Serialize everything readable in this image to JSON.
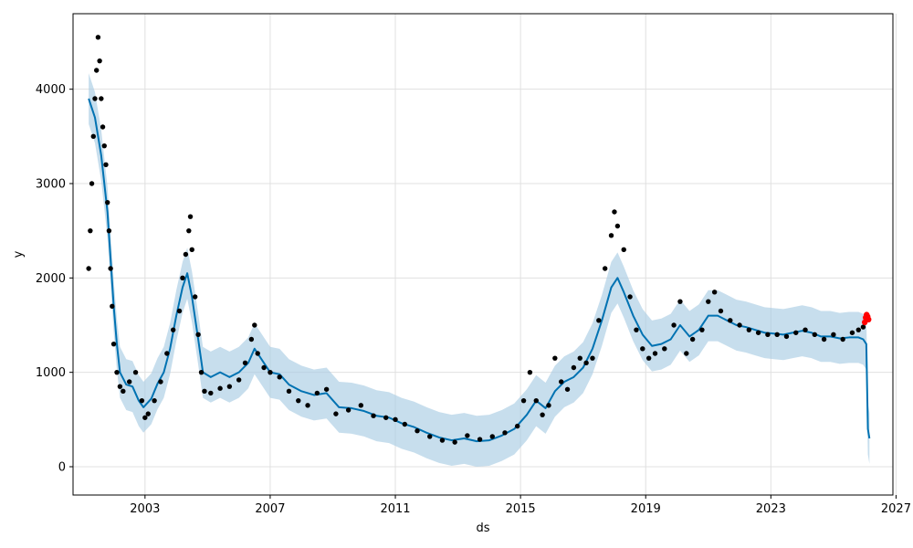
{
  "chart_data": {
    "type": "line",
    "title": "",
    "xlabel": "ds",
    "ylabel": "y",
    "xlim": [
      2000.7,
      2026.9
    ],
    "ylim": [
      -300,
      4800
    ],
    "x_ticks": [
      2003,
      2007,
      2011,
      2015,
      2019,
      2023,
      2027
    ],
    "y_ticks": [
      0,
      1000,
      2000,
      3000,
      4000
    ],
    "grid": true,
    "legend": "none",
    "colors": {
      "observed": "#000000",
      "forecast": "#0072B2",
      "interval": "#a9cce3",
      "highlight": "#ff0000"
    },
    "series": [
      {
        "kind": "observed-points",
        "points": [
          [
            2001.2,
            2100
          ],
          [
            2001.25,
            2500
          ],
          [
            2001.3,
            3000
          ],
          [
            2001.35,
            3500
          ],
          [
            2001.4,
            3900
          ],
          [
            2001.45,
            4200
          ],
          [
            2001.5,
            4550
          ],
          [
            2001.55,
            4300
          ],
          [
            2001.6,
            3900
          ],
          [
            2001.65,
            3600
          ],
          [
            2001.7,
            3400
          ],
          [
            2001.75,
            3200
          ],
          [
            2001.8,
            2800
          ],
          [
            2001.85,
            2500
          ],
          [
            2001.9,
            2100
          ],
          [
            2001.95,
            1700
          ],
          [
            2002.0,
            1300
          ],
          [
            2002.1,
            1000
          ],
          [
            2002.2,
            850
          ],
          [
            2002.3,
            800
          ],
          [
            2002.5,
            900
          ],
          [
            2002.7,
            1000
          ],
          [
            2002.9,
            700
          ],
          [
            2003.0,
            520
          ],
          [
            2003.1,
            560
          ],
          [
            2003.3,
            700
          ],
          [
            2003.5,
            900
          ],
          [
            2003.7,
            1200
          ],
          [
            2003.9,
            1450
          ],
          [
            2004.1,
            1650
          ],
          [
            2004.2,
            2000
          ],
          [
            2004.3,
            2250
          ],
          [
            2004.4,
            2500
          ],
          [
            2004.45,
            2650
          ],
          [
            2004.5,
            2300
          ],
          [
            2004.6,
            1800
          ],
          [
            2004.7,
            1400
          ],
          [
            2004.8,
            1000
          ],
          [
            2004.9,
            800
          ],
          [
            2005.1,
            780
          ],
          [
            2005.4,
            830
          ],
          [
            2005.7,
            850
          ],
          [
            2006.0,
            920
          ],
          [
            2006.2,
            1100
          ],
          [
            2006.4,
            1350
          ],
          [
            2006.5,
            1500
          ],
          [
            2006.6,
            1200
          ],
          [
            2006.8,
            1050
          ],
          [
            2007.0,
            1000
          ],
          [
            2007.3,
            950
          ],
          [
            2007.6,
            800
          ],
          [
            2007.9,
            700
          ],
          [
            2008.2,
            650
          ],
          [
            2008.5,
            780
          ],
          [
            2008.8,
            820
          ],
          [
            2009.1,
            560
          ],
          [
            2009.5,
            600
          ],
          [
            2009.9,
            650
          ],
          [
            2010.3,
            540
          ],
          [
            2010.7,
            520
          ],
          [
            2011.0,
            500
          ],
          [
            2011.3,
            450
          ],
          [
            2011.7,
            380
          ],
          [
            2012.1,
            320
          ],
          [
            2012.5,
            280
          ],
          [
            2012.9,
            260
          ],
          [
            2013.3,
            330
          ],
          [
            2013.7,
            290
          ],
          [
            2014.1,
            320
          ],
          [
            2014.5,
            360
          ],
          [
            2014.9,
            430
          ],
          [
            2015.1,
            700
          ],
          [
            2015.3,
            1000
          ],
          [
            2015.5,
            700
          ],
          [
            2015.7,
            550
          ],
          [
            2015.9,
            650
          ],
          [
            2016.1,
            1150
          ],
          [
            2016.3,
            900
          ],
          [
            2016.5,
            820
          ],
          [
            2016.7,
            1050
          ],
          [
            2016.9,
            1150
          ],
          [
            2017.1,
            1100
          ],
          [
            2017.3,
            1150
          ],
          [
            2017.5,
            1550
          ],
          [
            2017.7,
            2100
          ],
          [
            2017.9,
            2450
          ],
          [
            2018.0,
            2700
          ],
          [
            2018.1,
            2550
          ],
          [
            2018.3,
            2300
          ],
          [
            2018.5,
            1800
          ],
          [
            2018.7,
            1450
          ],
          [
            2018.9,
            1250
          ],
          [
            2019.1,
            1150
          ],
          [
            2019.3,
            1200
          ],
          [
            2019.6,
            1250
          ],
          [
            2019.9,
            1500
          ],
          [
            2020.1,
            1750
          ],
          [
            2020.3,
            1200
          ],
          [
            2020.5,
            1350
          ],
          [
            2020.8,
            1450
          ],
          [
            2021.0,
            1750
          ],
          [
            2021.2,
            1850
          ],
          [
            2021.4,
            1650
          ],
          [
            2021.7,
            1550
          ],
          [
            2022.0,
            1500
          ],
          [
            2022.3,
            1450
          ],
          [
            2022.6,
            1420
          ],
          [
            2022.9,
            1400
          ],
          [
            2023.2,
            1400
          ],
          [
            2023.5,
            1380
          ],
          [
            2023.8,
            1420
          ],
          [
            2024.1,
            1450
          ],
          [
            2024.4,
            1400
          ],
          [
            2024.7,
            1350
          ],
          [
            2025.0,
            1400
          ],
          [
            2025.3,
            1350
          ],
          [
            2025.6,
            1420
          ],
          [
            2025.8,
            1450
          ],
          [
            2025.95,
            1480
          ]
        ]
      },
      {
        "kind": "highlighted-points",
        "points": [
          [
            2026.0,
            1530
          ],
          [
            2026.03,
            1580
          ],
          [
            2026.06,
            1610
          ],
          [
            2026.09,
            1590
          ],
          [
            2026.12,
            1560
          ]
        ]
      },
      {
        "kind": "forecast-line",
        "points": [
          [
            2001.2,
            3900
          ],
          [
            2001.4,
            3700
          ],
          [
            2001.6,
            3300
          ],
          [
            2001.8,
            2700
          ],
          [
            2002.0,
            1700
          ],
          [
            2002.1,
            1300
          ],
          [
            2002.2,
            1000
          ],
          [
            2002.4,
            870
          ],
          [
            2002.6,
            850
          ],
          [
            2002.8,
            700
          ],
          [
            2002.95,
            630
          ],
          [
            2003.2,
            720
          ],
          [
            2003.4,
            880
          ],
          [
            2003.6,
            1000
          ],
          [
            2003.8,
            1250
          ],
          [
            2004.0,
            1600
          ],
          [
            2004.2,
            1900
          ],
          [
            2004.35,
            2050
          ],
          [
            2004.5,
            1800
          ],
          [
            2004.7,
            1350
          ],
          [
            2004.85,
            1000
          ],
          [
            2005.1,
            950
          ],
          [
            2005.4,
            1000
          ],
          [
            2005.7,
            950
          ],
          [
            2006.0,
            1000
          ],
          [
            2006.3,
            1100
          ],
          [
            2006.5,
            1250
          ],
          [
            2006.7,
            1150
          ],
          [
            2007.0,
            1000
          ],
          [
            2007.3,
            980
          ],
          [
            2007.6,
            870
          ],
          [
            2008.0,
            800
          ],
          [
            2008.4,
            760
          ],
          [
            2008.8,
            780
          ],
          [
            2009.2,
            630
          ],
          [
            2009.6,
            620
          ],
          [
            2010.0,
            590
          ],
          [
            2010.4,
            540
          ],
          [
            2010.8,
            520
          ],
          [
            2011.2,
            460
          ],
          [
            2011.6,
            420
          ],
          [
            2012.0,
            360
          ],
          [
            2012.4,
            310
          ],
          [
            2012.8,
            280
          ],
          [
            2013.2,
            300
          ],
          [
            2013.6,
            270
          ],
          [
            2014.0,
            280
          ],
          [
            2014.4,
            330
          ],
          [
            2014.8,
            400
          ],
          [
            2015.2,
            550
          ],
          [
            2015.5,
            700
          ],
          [
            2015.8,
            620
          ],
          [
            2016.1,
            800
          ],
          [
            2016.4,
            900
          ],
          [
            2016.7,
            950
          ],
          [
            2017.0,
            1050
          ],
          [
            2017.3,
            1250
          ],
          [
            2017.6,
            1550
          ],
          [
            2017.9,
            1900
          ],
          [
            2018.1,
            2000
          ],
          [
            2018.3,
            1850
          ],
          [
            2018.6,
            1600
          ],
          [
            2018.9,
            1400
          ],
          [
            2019.2,
            1280
          ],
          [
            2019.5,
            1300
          ],
          [
            2019.8,
            1350
          ],
          [
            2020.1,
            1500
          ],
          [
            2020.4,
            1380
          ],
          [
            2020.7,
            1450
          ],
          [
            2021.0,
            1600
          ],
          [
            2021.3,
            1600
          ],
          [
            2021.6,
            1550
          ],
          [
            2021.9,
            1500
          ],
          [
            2022.2,
            1480
          ],
          [
            2022.5,
            1450
          ],
          [
            2022.8,
            1420
          ],
          [
            2023.1,
            1410
          ],
          [
            2023.4,
            1400
          ],
          [
            2023.7,
            1420
          ],
          [
            2024.0,
            1440
          ],
          [
            2024.3,
            1420
          ],
          [
            2024.6,
            1380
          ],
          [
            2024.9,
            1380
          ],
          [
            2025.2,
            1360
          ],
          [
            2025.5,
            1370
          ],
          [
            2025.8,
            1370
          ],
          [
            2025.95,
            1350
          ],
          [
            2026.05,
            1300
          ],
          [
            2026.1,
            400
          ],
          [
            2026.15,
            300
          ]
        ]
      },
      {
        "kind": "uncertainty-band",
        "spread": 270
      }
    ]
  }
}
